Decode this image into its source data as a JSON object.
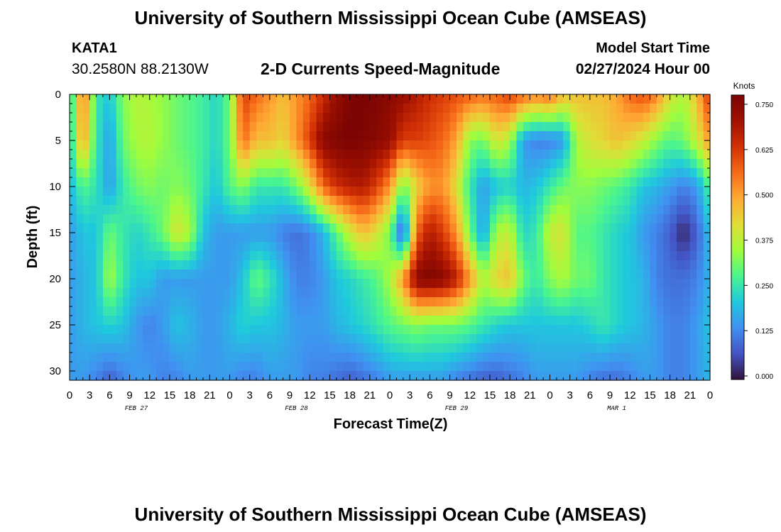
{
  "header": {
    "title": "University of Southern Mississippi Ocean Cube (AMSEAS)",
    "station_id": "KATA1",
    "station_coords": "30.2580N  88.2130W",
    "plot_title": "2-D Currents Speed-Magnitude",
    "model_start_label": "Model Start Time",
    "model_start_value": "02/27/2024 Hour 00"
  },
  "footer": {
    "title": "University of Southern Mississippi Ocean Cube (AMSEAS)"
  },
  "colors": {
    "colormap": [
      "#30123b",
      "#4454c4",
      "#4190f1",
      "#1fc9dd",
      "#4af58f",
      "#a2fc3c",
      "#e1dd37",
      "#feaa35",
      "#f66b19",
      "#d23105",
      "#a01101",
      "#7a0403"
    ]
  },
  "chart_data": {
    "type": "heatmap",
    "title": "2-D Currents Speed-Magnitude",
    "xlabel": "Forecast Time(Z)",
    "ylabel": "Depth (ft)",
    "x_tick_labels": [
      "0",
      "3",
      "6",
      "9",
      "12",
      "15",
      "18",
      "21",
      "0",
      "3",
      "6",
      "9",
      "12",
      "15",
      "18",
      "21",
      "0",
      "3",
      "6",
      "9",
      "12",
      "15",
      "18",
      "21",
      "0",
      "3",
      "6",
      "9",
      "12",
      "15",
      "18",
      "21",
      "0"
    ],
    "date_labels": [
      "FEB 27",
      "FEB 28",
      "FEB 29",
      "MAR 1"
    ],
    "xlim": [
      0,
      96
    ],
    "x_unit": "hours",
    "ylim": [
      0,
      31
    ],
    "y_inverted": true,
    "y_tick_labels": [
      "0",
      "5",
      "10",
      "15",
      "20",
      "25",
      "30"
    ],
    "colorbar": {
      "label": "Knots",
      "ticks": [
        "0.000",
        "0.125",
        "0.250",
        "0.375",
        "0.500",
        "0.625",
        "0.750"
      ],
      "range": [
        0,
        0.75
      ]
    },
    "depths": [
      0,
      5,
      10,
      15,
      20,
      25,
      31
    ],
    "times": [
      0,
      2,
      4,
      6,
      8,
      10,
      12,
      14,
      16,
      18,
      20,
      22,
      24,
      26,
      28,
      30,
      32,
      34,
      36,
      38,
      40,
      42,
      44,
      46,
      48,
      50,
      52,
      54,
      56,
      58,
      60,
      62,
      64,
      66,
      68,
      70,
      72,
      74,
      76,
      78,
      80,
      82,
      84,
      86,
      88,
      90,
      92,
      94,
      96
    ],
    "values": [
      [
        0.2,
        0.55,
        0.25,
        0.2,
        0.32,
        0.36,
        0.35,
        0.33,
        0.3,
        0.28,
        0.26,
        0.22,
        0.3,
        0.6,
        0.55,
        0.5,
        0.45,
        0.5,
        0.55,
        0.62,
        0.7,
        0.74,
        0.75,
        0.74,
        0.72,
        0.7,
        0.66,
        0.62,
        0.6,
        0.58,
        0.56,
        0.54,
        0.56,
        0.6,
        0.55,
        0.52,
        0.55,
        0.45,
        0.45,
        0.45,
        0.45,
        0.48,
        0.55,
        0.58,
        0.52,
        0.4,
        0.35,
        0.45,
        0.62
      ],
      [
        0.2,
        0.5,
        0.25,
        0.15,
        0.3,
        0.35,
        0.36,
        0.33,
        0.3,
        0.28,
        0.26,
        0.22,
        0.3,
        0.55,
        0.45,
        0.45,
        0.42,
        0.5,
        0.6,
        0.72,
        0.74,
        0.75,
        0.74,
        0.72,
        0.7,
        0.6,
        0.6,
        0.58,
        0.55,
        0.48,
        0.32,
        0.3,
        0.4,
        0.35,
        0.15,
        0.12,
        0.12,
        0.15,
        0.35,
        0.4,
        0.42,
        0.45,
        0.42,
        0.38,
        0.32,
        0.28,
        0.3,
        0.38,
        0.5
      ],
      [
        0.18,
        0.28,
        0.24,
        0.15,
        0.25,
        0.3,
        0.32,
        0.3,
        0.32,
        0.3,
        0.25,
        0.2,
        0.28,
        0.32,
        0.25,
        0.25,
        0.25,
        0.3,
        0.4,
        0.55,
        0.62,
        0.65,
        0.66,
        0.6,
        0.5,
        0.3,
        0.42,
        0.5,
        0.5,
        0.4,
        0.25,
        0.15,
        0.2,
        0.22,
        0.18,
        0.2,
        0.25,
        0.3,
        0.32,
        0.32,
        0.3,
        0.28,
        0.25,
        0.2,
        0.18,
        0.15,
        0.12,
        0.15,
        0.28
      ],
      [
        0.15,
        0.2,
        0.2,
        0.3,
        0.25,
        0.22,
        0.25,
        0.3,
        0.4,
        0.35,
        0.2,
        0.15,
        0.15,
        0.15,
        0.15,
        0.15,
        0.12,
        0.1,
        0.12,
        0.18,
        0.28,
        0.38,
        0.45,
        0.4,
        0.3,
        0.05,
        0.55,
        0.66,
        0.6,
        0.5,
        0.3,
        0.15,
        0.35,
        0.38,
        0.22,
        0.25,
        0.38,
        0.4,
        0.28,
        0.28,
        0.25,
        0.22,
        0.2,
        0.15,
        0.12,
        0.08,
        0.02,
        0.08,
        0.2
      ],
      [
        0.15,
        0.18,
        0.2,
        0.35,
        0.25,
        0.2,
        0.2,
        0.15,
        0.15,
        0.15,
        0.15,
        0.15,
        0.15,
        0.2,
        0.3,
        0.25,
        0.18,
        0.12,
        0.12,
        0.15,
        0.2,
        0.22,
        0.25,
        0.28,
        0.35,
        0.5,
        0.72,
        0.74,
        0.72,
        0.65,
        0.5,
        0.35,
        0.42,
        0.45,
        0.3,
        0.25,
        0.32,
        0.35,
        0.3,
        0.3,
        0.25,
        0.22,
        0.2,
        0.18,
        0.12,
        0.1,
        0.1,
        0.12,
        0.18
      ],
      [
        0.15,
        0.18,
        0.2,
        0.22,
        0.2,
        0.15,
        0.12,
        0.15,
        0.2,
        0.18,
        0.15,
        0.15,
        0.18,
        0.22,
        0.2,
        0.2,
        0.18,
        0.15,
        0.15,
        0.15,
        0.18,
        0.2,
        0.22,
        0.25,
        0.28,
        0.3,
        0.32,
        0.3,
        0.3,
        0.3,
        0.28,
        0.25,
        0.22,
        0.2,
        0.2,
        0.2,
        0.2,
        0.2,
        0.2,
        0.22,
        0.25,
        0.22,
        0.2,
        0.18,
        0.15,
        0.12,
        0.12,
        0.15,
        0.2
      ],
      [
        0.15,
        0.15,
        0.12,
        0.08,
        0.12,
        0.15,
        0.15,
        0.12,
        0.12,
        0.15,
        0.15,
        0.15,
        0.15,
        0.12,
        0.12,
        0.15,
        0.15,
        0.15,
        0.12,
        0.12,
        0.1,
        0.08,
        0.1,
        0.12,
        0.15,
        0.15,
        0.15,
        0.15,
        0.15,
        0.12,
        0.1,
        0.08,
        0.08,
        0.1,
        0.12,
        0.15,
        0.15,
        0.15,
        0.15,
        0.12,
        0.1,
        0.1,
        0.12,
        0.15,
        0.15,
        0.12,
        0.12,
        0.15,
        0.18
      ]
    ]
  }
}
